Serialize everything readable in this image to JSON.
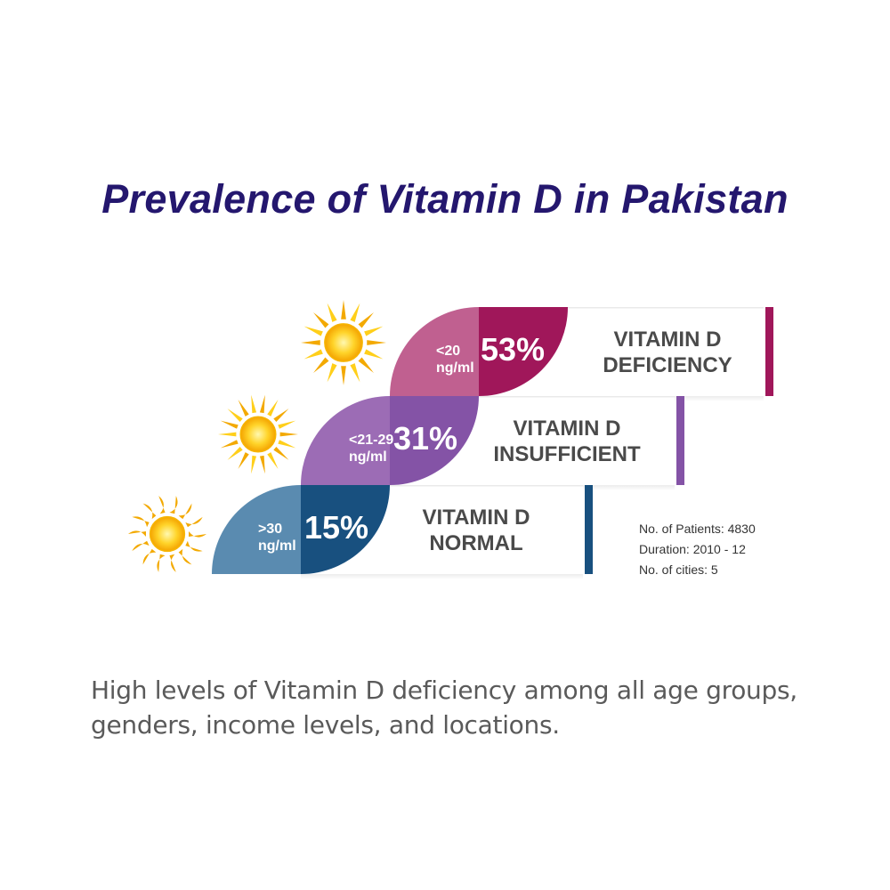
{
  "title": "Prevalence of Vitamin D in Pakistan",
  "chart_data": {
    "type": "bar",
    "categories": [
      "VITAMIN D DEFICIENCY",
      "VITAMIN D INSUFFICIENT",
      "VITAMIN D NORMAL"
    ],
    "values": [
      53,
      31,
      15
    ],
    "unit": "%",
    "items": [
      {
        "value": 53,
        "value_label": "53%",
        "range_lines": [
          "<20",
          "ng/ml"
        ],
        "label_lines": [
          "VITAMIN D",
          "DEFICIENCY"
        ],
        "color_light": "#c06090",
        "color_dark": "#a0175a"
      },
      {
        "value": 31,
        "value_label": "31%",
        "range_lines": [
          "<21-29",
          "ng/ml"
        ],
        "label_lines": [
          "VITAMIN D",
          "INSUFFICIENT"
        ],
        "color_light": "#9c6cb5",
        "color_dark": "#8453a6"
      },
      {
        "value": 15,
        "value_label": "15%",
        "range_lines": [
          ">30",
          "ng/ml"
        ],
        "label_lines": [
          "VITAMIN D",
          "NORMAL"
        ],
        "color_light": "#5a8bb0",
        "color_dark": "#18507f"
      }
    ]
  },
  "stats": {
    "patients": "No. of Patients: 4830",
    "duration": "Duration: 2010 - 12",
    "cities": "No. of cities: 5"
  },
  "summary": "High levels of Vitamin D deficiency among all age groups, genders, income levels, and locations.",
  "icons": [
    "sun-icon",
    "sun-icon",
    "sun-icon"
  ],
  "colors": {
    "title": "#24176e",
    "label_text": "#4a4a4a",
    "sun_outer": "#f5b400",
    "sun_inner": "#ffd83a"
  }
}
